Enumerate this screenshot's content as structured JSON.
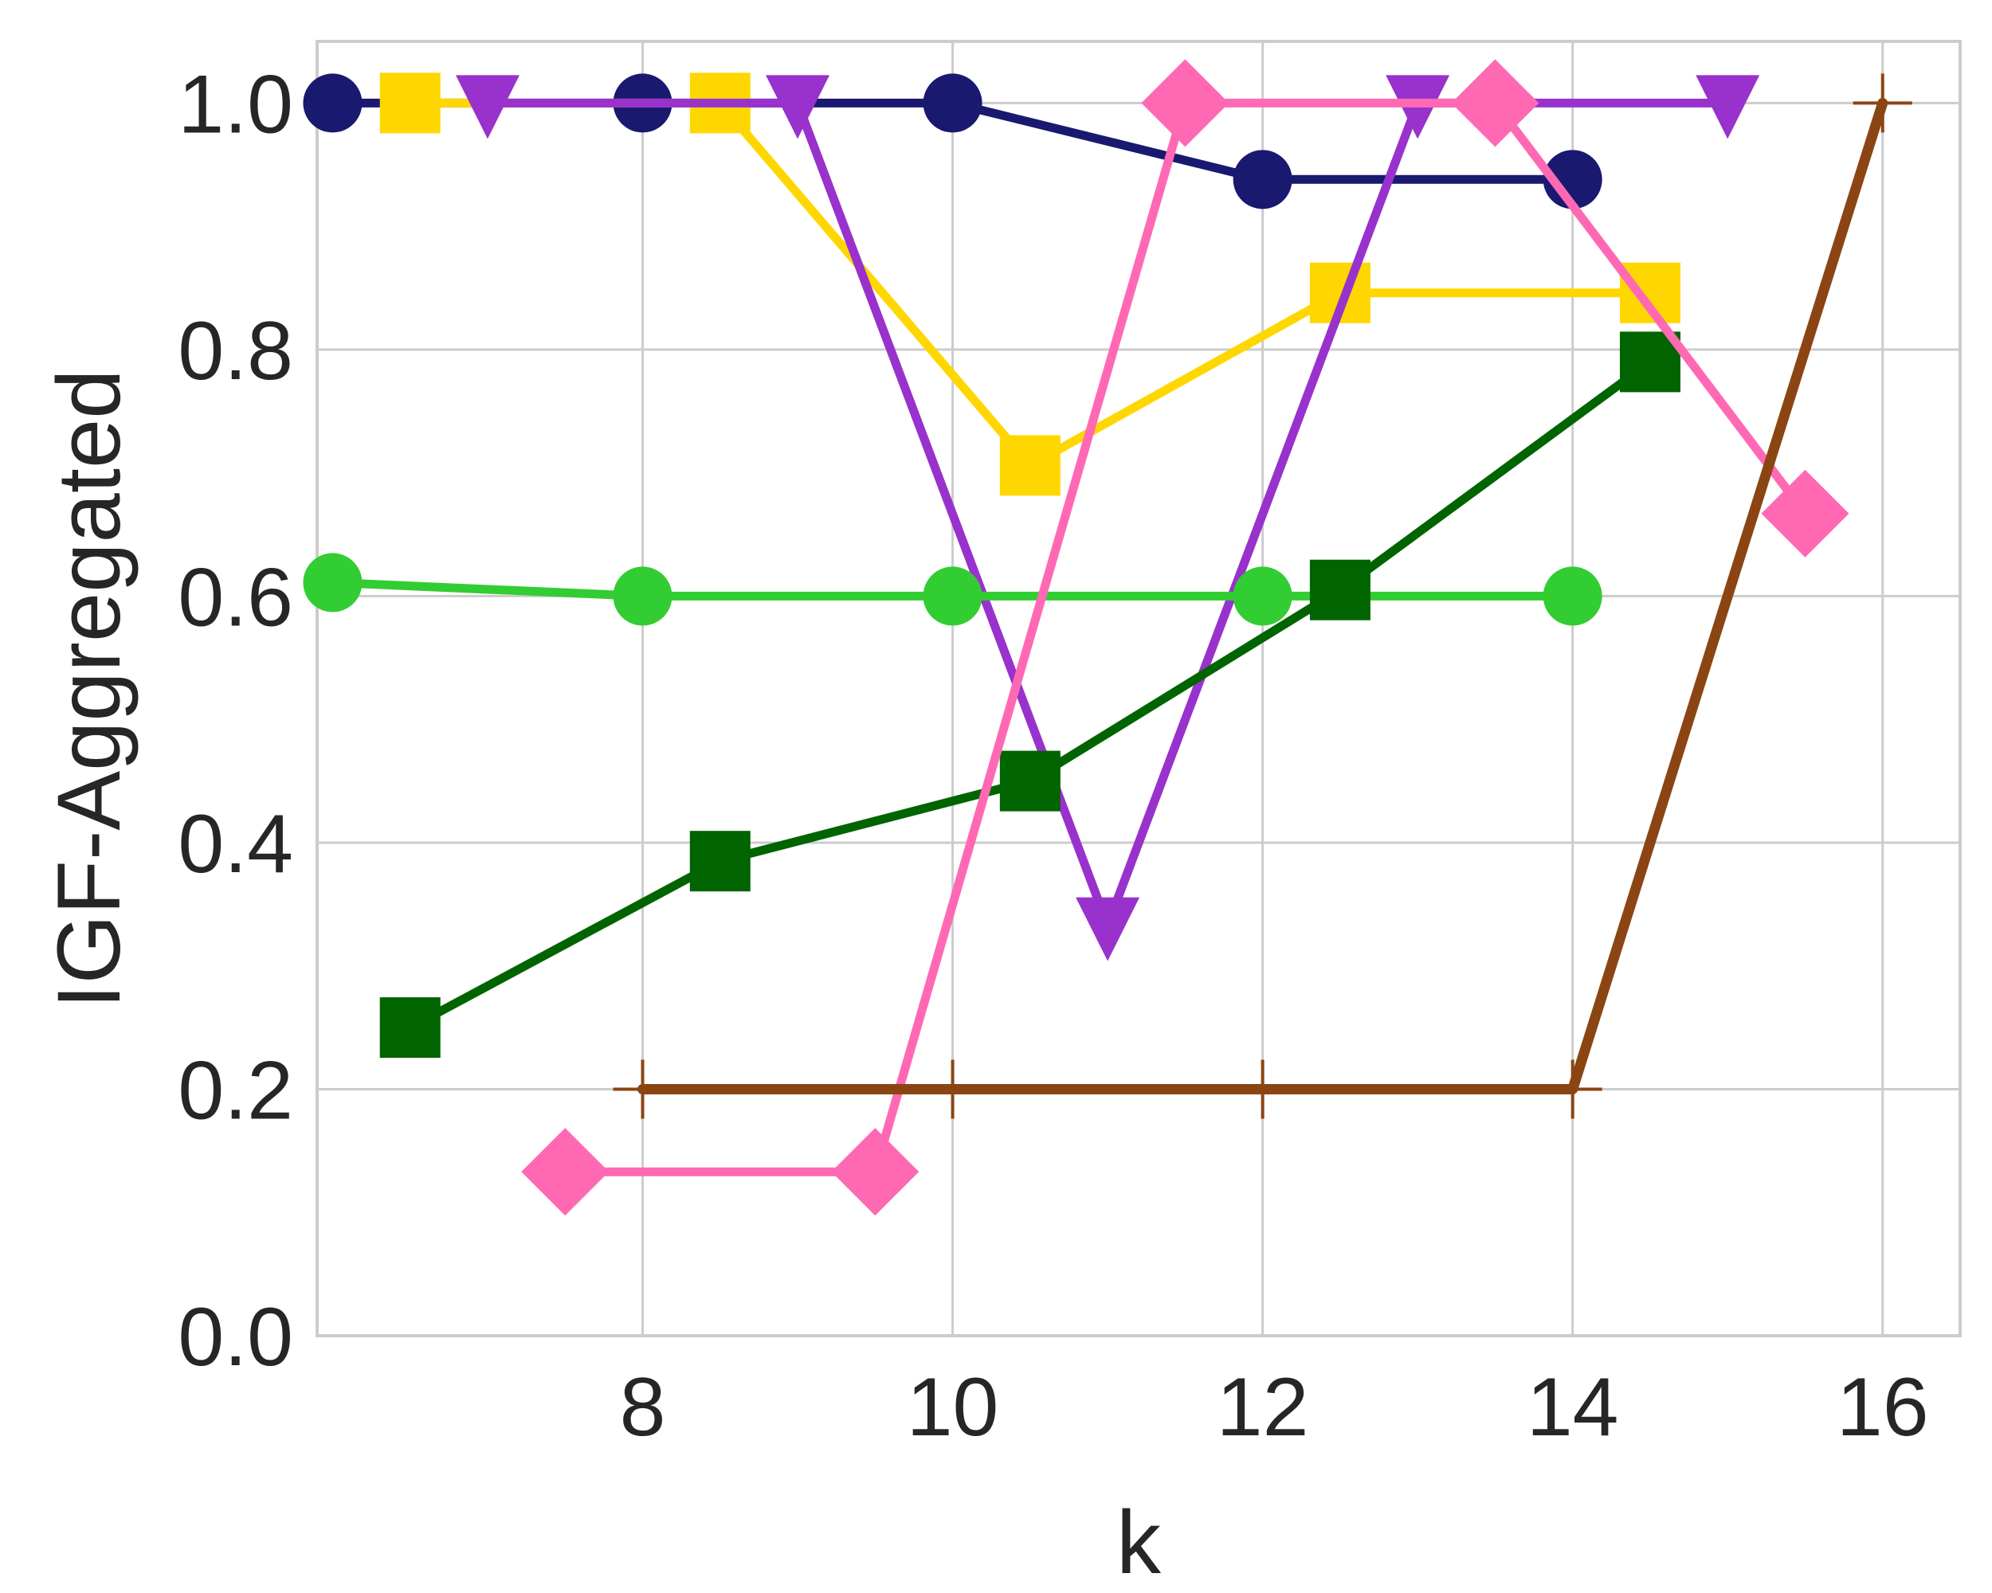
{
  "chart_data": {
    "type": "line",
    "xlabel": "k",
    "ylabel": "IGF-Aggregated",
    "xlim": [
      5.9,
      16.5
    ],
    "ylim": [
      0.0,
      1.05
    ],
    "xticks": [
      8,
      10,
      12,
      14,
      16
    ],
    "yticks": [
      0.0,
      0.2,
      0.4,
      0.6,
      0.8,
      1.0
    ],
    "xtick_labels": [
      "8",
      "10",
      "12",
      "14",
      "16"
    ],
    "ytick_labels": [
      "0.0",
      "0.2",
      "0.4",
      "0.6",
      "0.8",
      "1.0"
    ],
    "grid": true,
    "legend": "none",
    "series": [
      {
        "color": "#191970",
        "marker": "circle",
        "x": [
          6.0,
          8.0,
          10.0,
          12.0,
          14.0
        ],
        "y": [
          1.0,
          1.0,
          1.0,
          0.938,
          0.938
        ]
      },
      {
        "color": "#FFD700",
        "marker": "square",
        "x": [
          6.5,
          8.5,
          10.5,
          12.5,
          14.5
        ],
        "y": [
          1.0,
          1.0,
          0.706,
          0.846,
          0.846
        ]
      },
      {
        "color": "#9932CC",
        "marker": "triangle-down",
        "x": [
          7.0,
          9.0,
          11.0,
          13.0,
          15.0
        ],
        "y": [
          1.0,
          1.0,
          0.333,
          1.0,
          1.0
        ]
      },
      {
        "color": "#32CD32",
        "marker": "circle",
        "x": [
          6.0,
          8.0,
          10.0,
          12.0,
          14.0
        ],
        "y": [
          0.611,
          0.6,
          0.6,
          0.6,
          0.6
        ]
      },
      {
        "color": "#006400",
        "marker": "square",
        "x": [
          6.5,
          8.5,
          10.5,
          12.5,
          14.5
        ],
        "y": [
          0.25,
          0.385,
          0.45,
          0.605,
          0.79
        ]
      },
      {
        "color": "#FF69B4",
        "marker": "diamond",
        "x": [
          7.5,
          9.5,
          11.5,
          13.5,
          15.5
        ],
        "y": [
          0.133,
          0.133,
          1.0,
          1.0,
          0.667
        ]
      },
      {
        "color": "#8B4513",
        "marker": "plus",
        "x": [
          8.0,
          10.0,
          12.0,
          14.0,
          16.0
        ],
        "y": [
          0.2,
          0.2,
          0.2,
          0.2,
          1.0
        ]
      }
    ]
  }
}
